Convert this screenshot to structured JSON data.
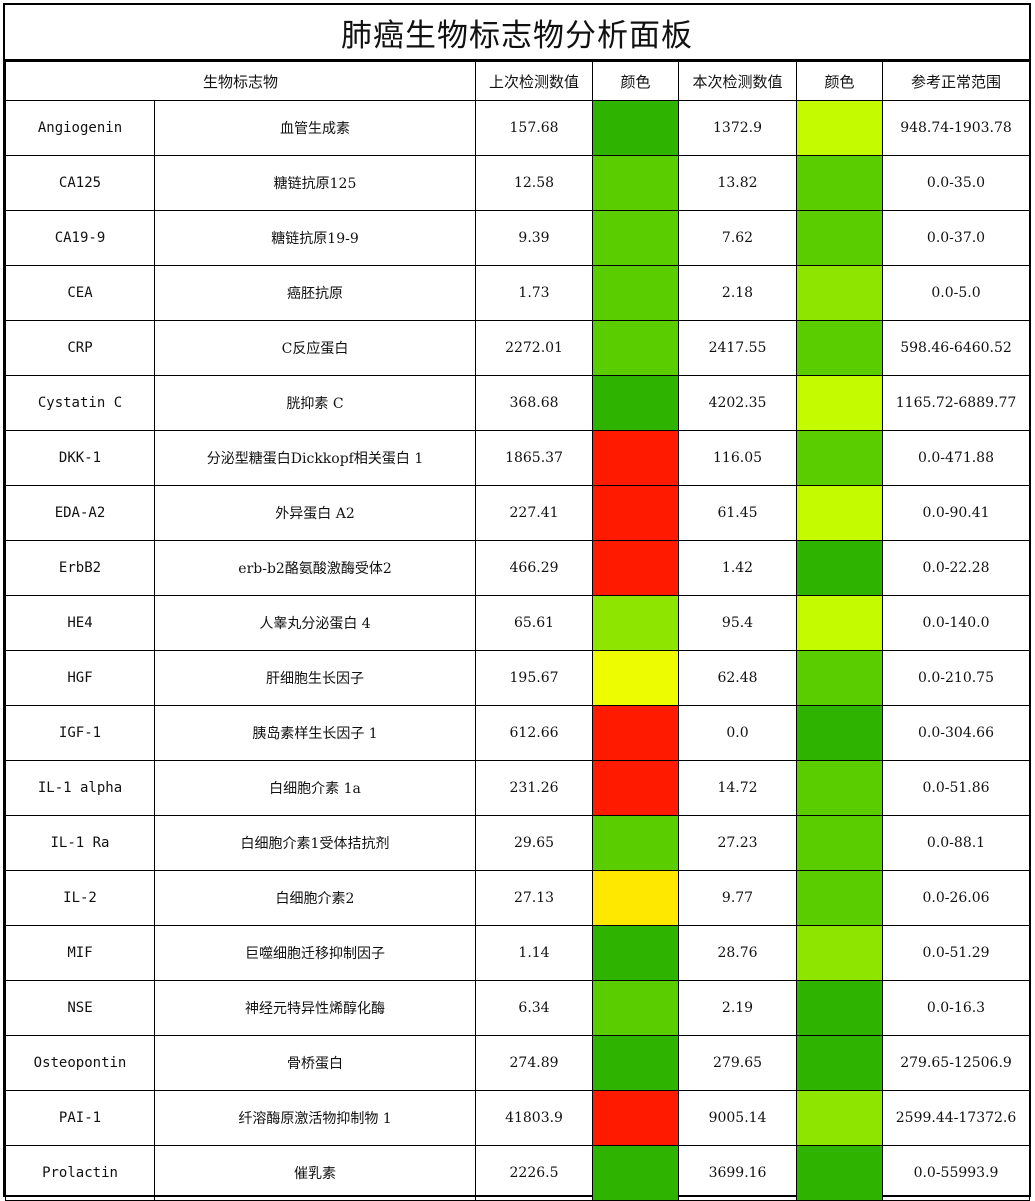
{
  "title": "肺癌生物标志物分析面板",
  "headers": {
    "biomarker": "生物标志物",
    "previous_value": "上次检测数值",
    "previous_color": "颜色",
    "current_value": "本次检测数值",
    "current_color": "颜色",
    "reference_range": "参考正常范围"
  },
  "colors": {
    "dark_green": "#2db300",
    "green": "#5acd00",
    "light_green": "#8ee600",
    "yellow_green": "#c4fb00",
    "yellow": "#eefc00",
    "gold": "#ffe800",
    "red": "#ff1a00"
  },
  "rows": [
    {
      "code": "Angiogenin",
      "name": "血管生成素",
      "previous": "157.68",
      "prev_color": "#2db300",
      "current": "1372.9",
      "curr_color": "#c4fb00",
      "range": "948.74-1903.78"
    },
    {
      "code": "CA125",
      "name": "糖链抗原125",
      "previous": "12.58",
      "prev_color": "#5acd00",
      "current": "13.82",
      "curr_color": "#5acd00",
      "range": "0.0-35.0"
    },
    {
      "code": "CA19-9",
      "name": "糖链抗原19-9",
      "previous": "9.39",
      "prev_color": "#5acd00",
      "current": "7.62",
      "curr_color": "#5acd00",
      "range": "0.0-37.0"
    },
    {
      "code": "CEA",
      "name": "癌胚抗原",
      "previous": "1.73",
      "prev_color": "#5acd00",
      "current": "2.18",
      "curr_color": "#8ee600",
      "range": "0.0-5.0"
    },
    {
      "code": "CRP",
      "name": "C反应蛋白",
      "previous": "2272.01",
      "prev_color": "#5acd00",
      "current": "2417.55",
      "curr_color": "#5acd00",
      "range": "598.46-6460.52"
    },
    {
      "code": "Cystatin C",
      "name": "胱抑素 C",
      "previous": "368.68",
      "prev_color": "#2db300",
      "current": "4202.35",
      "curr_color": "#c4fb00",
      "range": "1165.72-6889.77"
    },
    {
      "code": "DKK-1",
      "name": "分泌型糖蛋白Dickkopf相关蛋白 1",
      "previous": "1865.37",
      "prev_color": "#ff1a00",
      "current": "116.05",
      "curr_color": "#5acd00",
      "range": "0.0-471.88"
    },
    {
      "code": "EDA-A2",
      "name": "外异蛋白 A2",
      "previous": "227.41",
      "prev_color": "#ff1a00",
      "current": "61.45",
      "curr_color": "#c4fb00",
      "range": "0.0-90.41"
    },
    {
      "code": "ErbB2",
      "name": "erb-b2酪氨酸激酶受体2",
      "previous": "466.29",
      "prev_color": "#ff1a00",
      "current": "1.42",
      "curr_color": "#2db300",
      "range": "0.0-22.28"
    },
    {
      "code": "HE4",
      "name": "人睾丸分泌蛋白 4",
      "previous": "65.61",
      "prev_color": "#8ee600",
      "current": "95.4",
      "curr_color": "#c4fb00",
      "range": "0.0-140.0"
    },
    {
      "code": "HGF",
      "name": "肝细胞生长因子",
      "previous": "195.67",
      "prev_color": "#eefc00",
      "current": "62.48",
      "curr_color": "#5acd00",
      "range": "0.0-210.75"
    },
    {
      "code": "IGF-1",
      "name": "胰岛素样生长因子 1",
      "previous": "612.66",
      "prev_color": "#ff1a00",
      "current": "0.0",
      "curr_color": "#2db300",
      "range": "0.0-304.66"
    },
    {
      "code": "IL-1 alpha",
      "name": "白细胞介素 1a",
      "previous": "231.26",
      "prev_color": "#ff1a00",
      "current": "14.72",
      "curr_color": "#5acd00",
      "range": "0.0-51.86"
    },
    {
      "code": "IL-1 Ra",
      "name": "白细胞介素1受体拮抗剂",
      "previous": "29.65",
      "prev_color": "#5acd00",
      "current": "27.23",
      "curr_color": "#5acd00",
      "range": "0.0-88.1"
    },
    {
      "code": "IL-2",
      "name": "白细胞介素2",
      "previous": "27.13",
      "prev_color": "#ffe800",
      "current": "9.77",
      "curr_color": "#5acd00",
      "range": "0.0-26.06"
    },
    {
      "code": "MIF",
      "name": "巨噬细胞迁移抑制因子",
      "previous": "1.14",
      "prev_color": "#2db300",
      "current": "28.76",
      "curr_color": "#8ee600",
      "range": "0.0-51.29"
    },
    {
      "code": "NSE",
      "name": "神经元特异性烯醇化酶",
      "previous": "6.34",
      "prev_color": "#5acd00",
      "current": "2.19",
      "curr_color": "#2db300",
      "range": "0.0-16.3"
    },
    {
      "code": "Osteopontin",
      "name": "骨桥蛋白",
      "previous": "274.89",
      "prev_color": "#2db300",
      "current": "279.65",
      "curr_color": "#2db300",
      "range": "279.65-12506.9"
    },
    {
      "code": "PAI-1",
      "name": "纤溶酶原激活物抑制物 1",
      "previous": "41803.9",
      "prev_color": "#ff1a00",
      "current": "9005.14",
      "curr_color": "#8ee600",
      "range": "2599.44-17372.6"
    },
    {
      "code": "Prolactin",
      "name": "催乳素",
      "previous": "2226.5",
      "prev_color": "#2db300",
      "current": "3699.16",
      "curr_color": "#2db300",
      "range": "0.0-55993.9"
    }
  ]
}
